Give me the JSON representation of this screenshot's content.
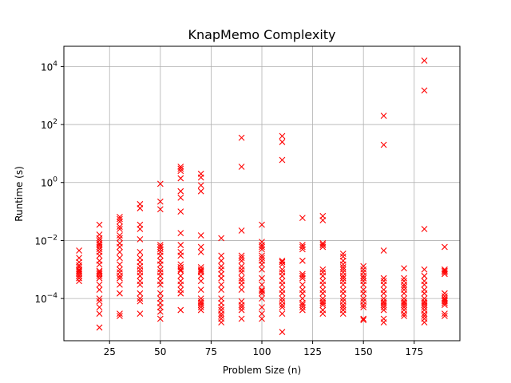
{
  "chart_data": {
    "type": "scatter",
    "title": "KnapMemo Complexity",
    "xlabel": "Problem Size (n)",
    "ylabel": "Runtime (s)",
    "xlim": [
      2.5,
      197.5
    ],
    "ylim": [
      3.5e-06,
      50000
    ],
    "yscale": "log",
    "grid": true,
    "marker": "x",
    "colors": {
      "marker": "#ff0000",
      "grid": "#b0b0b0"
    },
    "xticks": [
      25,
      50,
      75,
      100,
      125,
      150,
      175
    ],
    "xtick_labels": [
      "25",
      "50",
      "75",
      "100",
      "125",
      "150",
      "175"
    ],
    "yticks": [
      0.0001,
      0.01,
      1,
      100,
      10000
    ],
    "ytick_labels": [
      {
        "base": "10",
        "exp": "−4"
      },
      {
        "base": "10",
        "exp": "−2"
      },
      {
        "base": "10",
        "exp": "0"
      },
      {
        "base": "10",
        "exp": "2"
      },
      {
        "base": "10",
        "exp": "4"
      }
    ],
    "points": [
      {
        "x": 10,
        "y": [
          0.0045,
          0.0025,
          0.0018,
          0.0014,
          0.0012,
          0.001,
          0.0009,
          0.0008,
          0.0007,
          0.0006,
          0.0005,
          0.0004
        ]
      },
      {
        "x": 20,
        "y": [
          0.035,
          0.016,
          0.012,
          0.01,
          0.008,
          0.007,
          0.006,
          0.005,
          0.004,
          0.003,
          0.002,
          0.0015,
          0.0009,
          0.0008,
          0.0007,
          0.0006,
          0.0005,
          0.0003,
          0.0002,
          0.0001,
          8e-05,
          5e-05,
          3e-05,
          1e-05
        ]
      },
      {
        "x": 30,
        "y": [
          0.065,
          0.055,
          0.045,
          0.03,
          0.025,
          0.015,
          0.012,
          0.008,
          0.006,
          0.004,
          0.0025,
          0.0015,
          0.001,
          0.0008,
          0.0006,
          0.0005,
          0.0003,
          0.00015,
          3e-05,
          2.5e-05
        ]
      },
      {
        "x": 40,
        "y": [
          0.18,
          0.13,
          0.035,
          0.025,
          0.011,
          0.004,
          0.0025,
          0.0018,
          0.0013,
          0.001,
          0.0008,
          0.0006,
          0.0004,
          0.0003,
          0.00015,
          0.0001,
          8e-05,
          3e-05
        ]
      },
      {
        "x": 50,
        "y": [
          0.9,
          0.22,
          0.12,
          0.007,
          0.006,
          0.005,
          0.004,
          0.003,
          0.002,
          0.0015,
          0.001,
          0.0008,
          0.0006,
          0.0004,
          0.0003,
          0.00015,
          0.0001,
          7e-05,
          5e-05,
          3.5e-05,
          2e-05
        ]
      },
      {
        "x": 60,
        "y": [
          3.5,
          3,
          2.5,
          1.4,
          0.5,
          0.3,
          0.1,
          0.018,
          0.007,
          0.004,
          0.003,
          0.0015,
          0.0012,
          0.001,
          0.0009,
          0.0006,
          0.0004,
          0.0003,
          0.0002,
          0.00015,
          4e-05
        ]
      },
      {
        "x": 70,
        "y": [
          2,
          1.5,
          0.8,
          0.5,
          0.015,
          0.006,
          0.004,
          0.0012,
          0.001,
          0.0009,
          0.0008,
          0.0006,
          0.0004,
          0.0002,
          0.0001,
          8e-05,
          7e-05,
          6e-05,
          5e-05,
          4e-05
        ]
      },
      {
        "x": 80,
        "y": [
          0.012,
          0.003,
          0.002,
          0.0013,
          0.001,
          0.0007,
          0.0005,
          0.0003,
          0.0002,
          0.0001,
          7e-05,
          5e-05,
          4e-05,
          3e-05,
          2.5e-05,
          2e-05,
          1.5e-05
        ]
      },
      {
        "x": 90,
        "y": [
          35,
          3.5,
          0.022,
          0.003,
          0.0025,
          0.002,
          0.0013,
          0.001,
          0.0008,
          0.0005,
          0.0004,
          0.0003,
          0.0002,
          8e-05,
          6e-05,
          5e-05,
          4e-05,
          2e-05
        ]
      },
      {
        "x": 100,
        "y": [
          0.035,
          0.009,
          0.007,
          0.006,
          0.005,
          0.003,
          0.0025,
          0.002,
          0.0015,
          0.001,
          0.0005,
          0.0003,
          0.0002,
          0.00018,
          0.00015,
          0.0001,
          5e-05,
          3e-05,
          2e-05
        ]
      },
      {
        "x": 110,
        "y": [
          40,
          25,
          6,
          0.002,
          0.0018,
          0.0015,
          0.001,
          0.0008,
          0.0006,
          0.0004,
          0.0003,
          0.0002,
          0.00015,
          0.0001,
          8e-05,
          6e-05,
          5e-05,
          3e-05,
          7e-06
        ]
      },
      {
        "x": 120,
        "y": [
          0.06,
          0.007,
          0.006,
          0.005,
          0.002,
          0.0007,
          0.0006,
          0.0005,
          0.0003,
          0.0002,
          0.00015,
          0.0001,
          7e-05,
          6e-05,
          5e-05,
          4e-05
        ]
      },
      {
        "x": 130,
        "y": [
          0.07,
          0.05,
          0.008,
          0.007,
          0.006,
          0.001,
          0.0008,
          0.0006,
          0.0004,
          0.0003,
          0.0002,
          0.00015,
          0.0001,
          8e-05,
          7e-05,
          6e-05,
          4e-05,
          3e-05
        ]
      },
      {
        "x": 140,
        "y": [
          0.0035,
          0.0028,
          0.002,
          0.0015,
          0.0012,
          0.001,
          0.0008,
          0.0006,
          0.0005,
          0.0004,
          0.0003,
          0.0002,
          0.00015,
          0.0001,
          8e-05,
          6e-05,
          5e-05,
          4e-05,
          3e-05
        ]
      },
      {
        "x": 150,
        "y": [
          0.0013,
          0.001,
          0.0008,
          0.0006,
          0.0005,
          0.0004,
          0.0003,
          0.0002,
          0.00015,
          0.0001,
          8e-05,
          6e-05,
          5e-05,
          2e-05,
          1.8e-05
        ]
      },
      {
        "x": 160,
        "y": [
          200,
          20,
          0.0045,
          0.0005,
          0.0004,
          0.0003,
          0.0002,
          0.00015,
          0.0001,
          8e-05,
          7e-05,
          6e-05,
          5e-05,
          4e-05,
          2e-05,
          1.5e-05
        ]
      },
      {
        "x": 170,
        "y": [
          0.0011,
          0.0005,
          0.0004,
          0.0003,
          0.00025,
          0.0002,
          0.00015,
          0.0001,
          8e-05,
          7e-05,
          6e-05,
          5e-05,
          4e-05,
          3e-05,
          2.5e-05
        ]
      },
      {
        "x": 180,
        "y": [
          16000,
          1500,
          0.025,
          0.001,
          0.0006,
          0.0004,
          0.0003,
          0.0002,
          0.00015,
          0.0001,
          8e-05,
          7e-05,
          6e-05,
          5e-05,
          4e-05,
          3e-05,
          2.5e-05,
          2e-05,
          1.5e-05
        ]
      },
      {
        "x": 190,
        "y": [
          0.006,
          0.001,
          0.0009,
          0.0008,
          0.0007,
          0.00015,
          0.00012,
          0.0001,
          9e-05,
          8e-05,
          7e-05,
          6e-05,
          3e-05,
          2.5e-05
        ]
      }
    ]
  }
}
